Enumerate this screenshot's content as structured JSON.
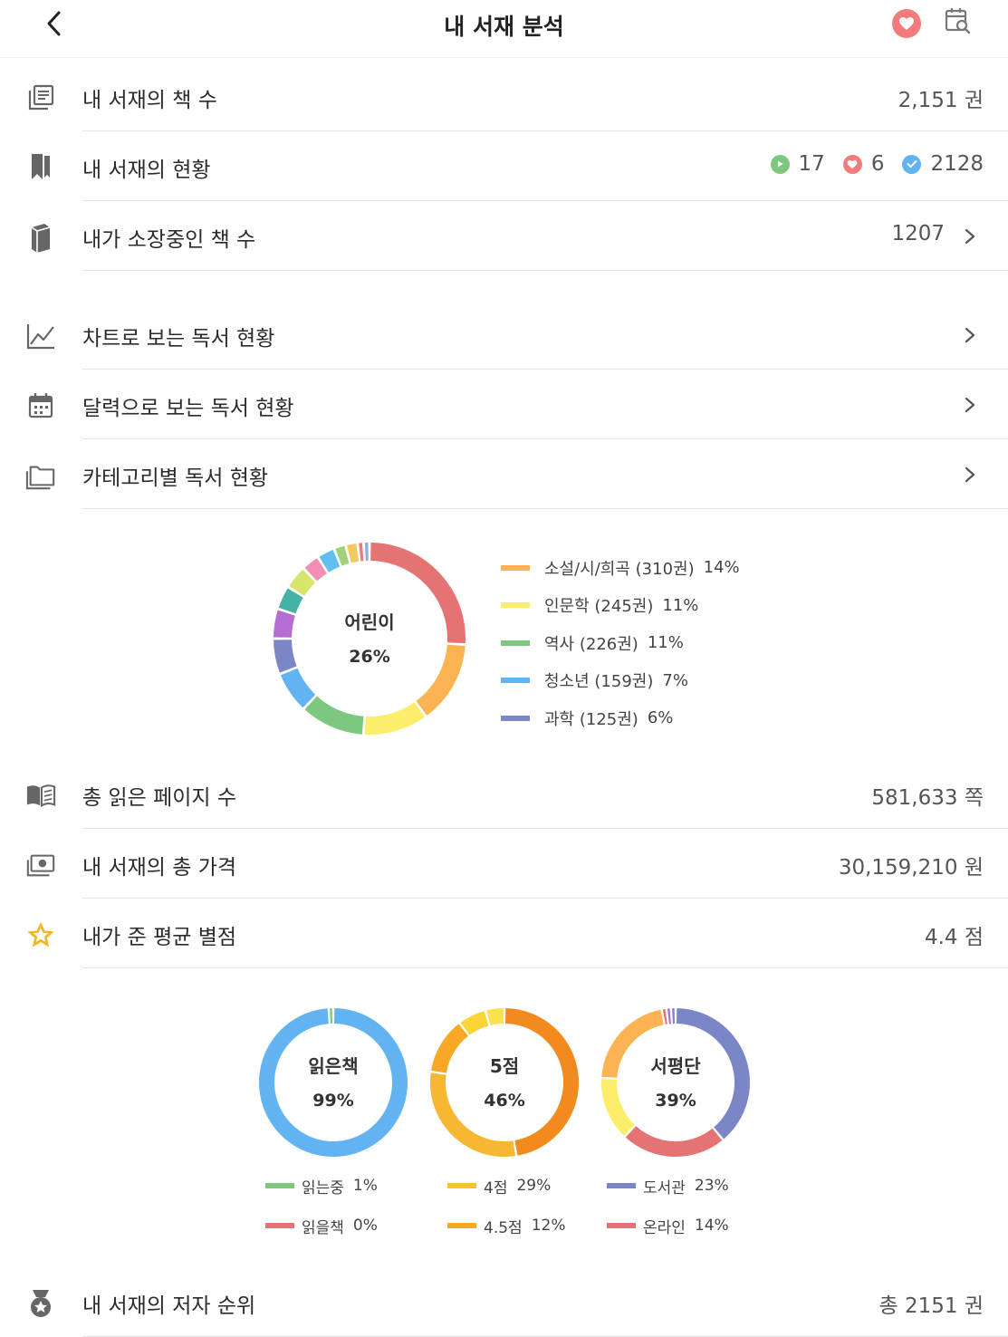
{
  "header": {
    "title": "내 서재 분석"
  },
  "rows": {
    "book_count": {
      "label": "내 서재의 책 수",
      "value": "2,151 권"
    },
    "status": {
      "label": "내 서재의 현황",
      "reading": "17",
      "wish": "6",
      "read": "2128"
    },
    "owned": {
      "label": "내가 소장중인 책 수",
      "value": "1207"
    },
    "chart": {
      "label": "차트로 보는 독서 현황"
    },
    "calendar": {
      "label": "달력으로 보는 독서 현황"
    },
    "category": {
      "label": "카테고리별 독서 현황"
    },
    "pages": {
      "label": "총 읽은 페이지 수",
      "value": "581,633 쪽"
    },
    "price": {
      "label": "내 서재의 총 가격",
      "value": "30,159,210 원"
    },
    "rating": {
      "label": "내가 준 평균 별점",
      "value": "4.4 점"
    },
    "authors": {
      "label": "내 서재의 저자 순위",
      "value": "총 2151 권"
    }
  },
  "category_chart": {
    "center_label": "어린이",
    "center_pct": "26%",
    "legend": [
      {
        "name": "소설/시/희곡 (310권)",
        "pct": "14%",
        "color": "#fbb451"
      },
      {
        "name": "인문학 (245권)",
        "pct": "11%",
        "color": "#fcee6a"
      },
      {
        "name": "역사 (226권)",
        "pct": "11%",
        "color": "#7dc87e"
      },
      {
        "name": "청소년 (159권)",
        "pct": "7%",
        "color": "#62b3f2"
      },
      {
        "name": "과학 (125권)",
        "pct": "6%",
        "color": "#7b86c9"
      }
    ]
  },
  "chart_data": [
    {
      "type": "pie",
      "values": [
        26,
        14,
        11,
        11,
        7,
        6,
        5,
        4,
        4,
        3,
        3,
        2,
        2,
        1,
        1
      ],
      "colors": [
        "#e57373",
        "#fbb451",
        "#fcee6a",
        "#7dc87e",
        "#62b3f2",
        "#7b86c9",
        "#b46dd0",
        "#46b1a5",
        "#d7e66a",
        "#f28eb5",
        "#5fc0ef",
        "#a2d17b",
        "#f4c85c",
        "#e77c7c",
        "#9fa8da"
      ],
      "center_label": "어린이",
      "center_pct": "26%"
    },
    {
      "type": "pie",
      "values": [
        99,
        1,
        0
      ],
      "colors": [
        "#62b3f2",
        "#7dc87e",
        "#e57373"
      ],
      "center_label": "읽은책",
      "center_pct": "99%",
      "legend": [
        {
          "name": "읽는중",
          "pct": "1%",
          "color": "#7dc87e"
        },
        {
          "name": "읽을책",
          "pct": "0%",
          "color": "#e57373"
        }
      ]
    },
    {
      "type": "pie",
      "values": [
        46,
        29,
        12,
        6,
        4
      ],
      "colors": [
        "#f28a1e",
        "#f7b733",
        "#f9a825",
        "#fbd535",
        "#fbe14b"
      ],
      "center_label": "5점",
      "center_pct": "46%",
      "legend": [
        {
          "name": "4점",
          "pct": "29%",
          "color": "#f7c234"
        },
        {
          "name": "4.5점",
          "pct": "12%",
          "color": "#f5a623"
        }
      ]
    },
    {
      "type": "pie",
      "values": [
        39,
        23,
        14,
        21,
        1,
        1,
        1
      ],
      "colors": [
        "#7b86c9",
        "#e57373",
        "#fcee6a",
        "#fbb451",
        "#e57373",
        "#b46dd0",
        "#7b86c9"
      ],
      "center_label": "서평단",
      "center_pct": "39%",
      "legend": [
        {
          "name": "도서관",
          "pct": "23%",
          "color": "#7b86c9"
        },
        {
          "name": "온라인",
          "pct": "14%",
          "color": "#e57373"
        }
      ]
    }
  ],
  "colors": {
    "accent_red": "#f27b7b",
    "divider": "#e4e4e4",
    "star": "#f5b623"
  },
  "icons": [
    "back-arrow",
    "heart",
    "calendar-search",
    "books",
    "bookmark",
    "book",
    "line-chart",
    "calendar",
    "folder",
    "open-book",
    "money",
    "star",
    "medal",
    "chevron-right"
  ]
}
